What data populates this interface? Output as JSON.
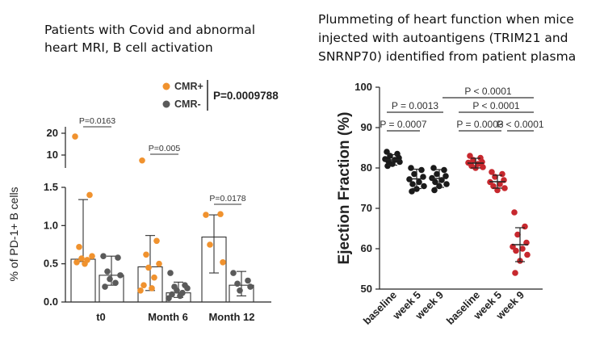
{
  "left": {
    "title_line1": "Patients with Covid and abnormal",
    "title_line2": "heart MRI, B cell activation",
    "legend_pvalue": "P=0.0009788"
  },
  "right": {
    "title_line1": "Plummeting of heart function when mice",
    "title_line2": "injected with autoantigens (TRIM21 and",
    "title_line3": "SNRNP70) identified from patient plasma"
  },
  "colors": {
    "orange": "#F0922E",
    "gray": "#5A5A5A",
    "black": "#1A1A1A",
    "red": "#C7282E"
  },
  "chart_data": [
    {
      "type": "scatter",
      "subtype": "bar-with-dots",
      "ylabel": "% of PD-1+ B cells",
      "xlabel": "",
      "categories": [
        "t0",
        "Month 6",
        "Month 12"
      ],
      "axis_breaks": [
        "1.5 to 10"
      ],
      "ylim": [
        0,
        20
      ],
      "yticks_lower": [
        "0.0",
        "0.5",
        "1.0",
        "1.5"
      ],
      "yticks_upper": [
        "10",
        "20"
      ],
      "legend": [
        "CMR+",
        "CMR-"
      ],
      "legend_placement": "top-right",
      "series": [
        {
          "name": "CMR+",
          "color": "orange",
          "bars": [
            0.56,
            0.46,
            0.85
          ],
          "error": [
            [
              0.53,
              1.34
            ],
            [
              0.15,
              0.87
            ],
            [
              0.38,
              1.14
            ]
          ],
          "points": [
            [
              18.5,
              1.4,
              0.72,
              0.6,
              0.57,
              0.55,
              0.52,
              0.5
            ],
            [
              7.5,
              0.8,
              0.62,
              0.5,
              0.45,
              0.32,
              0.22,
              0.18,
              0.15
            ],
            [
              1.14,
              1.15,
              0.75,
              0.52
            ]
          ]
        },
        {
          "name": "CMR-",
          "color": "gray",
          "bars": [
            0.35,
            0.12,
            0.22
          ],
          "error": [
            [
              0.22,
              0.6
            ],
            [
              0.06,
              0.26
            ],
            [
              0.08,
              0.4
            ]
          ],
          "points": [
            [
              0.6,
              0.58,
              0.4,
              0.35,
              0.3,
              0.25,
              0.2
            ],
            [
              0.38,
              0.22,
              0.2,
              0.18,
              0.15,
              0.12,
              0.1,
              0.08,
              0.05
            ],
            [
              0.38,
              0.28,
              0.24,
              0.2,
              0.15
            ]
          ]
        }
      ],
      "annotations": [
        "P=0.0163",
        "P=0.005",
        "P=0.0178"
      ]
    },
    {
      "type": "scatter",
      "ylabel": "Ejection Fraction  (%)",
      "xlabel": "",
      "categories": [
        "baseline",
        "week 5",
        "week 9",
        "baseline",
        "week 5",
        "week 9"
      ],
      "ylim": [
        50,
        100
      ],
      "yticks": [
        "50",
        "60",
        "70",
        "80",
        "90",
        "100"
      ],
      "grid": false,
      "series": [
        {
          "name": "",
          "color": "black",
          "mean": [
            82.0,
            77.3,
            77.4
          ],
          "sd": [
            1.3,
            2.4,
            2.2
          ],
          "points": [
            [
              84.0,
              83.5,
              83.0,
              82.5,
              82.2,
              82.0,
              81.7,
              81.5,
              81.0,
              80.5
            ],
            [
              80.0,
              79.5,
              78.5,
              77.8,
              77.2,
              76.5,
              76.0,
              75.5,
              74.8,
              74.2
            ],
            [
              80.0,
              79.5,
              78.5,
              78.0,
              77.5,
              77.0,
              76.5,
              76.0,
              75.5,
              74.5
            ]
          ]
        },
        {
          "name": "",
          "color": "red",
          "mean": [
            81.2,
            76.6,
            61.0
          ],
          "sd": [
            1.2,
            1.6,
            4.2
          ],
          "points": [
            [
              83.0,
              82.5,
              82.0,
              81.5,
              81.3,
              81.0,
              80.5,
              80.2,
              80.0
            ],
            [
              79.0,
              78.5,
              77.8,
              77.0,
              76.5,
              76.0,
              75.5,
              75.0,
              74.5
            ],
            [
              69.0,
              65.5,
              63.5,
              61.5,
              60.5,
              60.0,
              59.5,
              58.5,
              57.0,
              54.0
            ]
          ]
        }
      ],
      "annotations": [
        "P = 0.0007",
        "P = 0.0013",
        "P < 0.0001",
        "P = 0.0003",
        "P < 0.0001",
        "P < 0.0001"
      ]
    }
  ]
}
